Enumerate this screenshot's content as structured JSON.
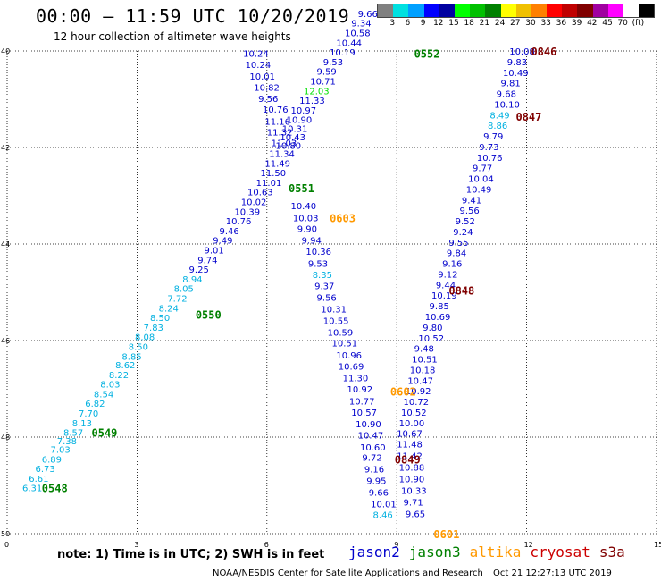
{
  "title": "00:00 – 11:59 UTC 10/20/2019",
  "subtitle": "12 hour collection of altimeter wave heights",
  "colorbar": {
    "colors": [
      "#808080",
      "#00e0e0",
      "#00a0ff",
      "#0000ff",
      "#0000a0",
      "#00ff00",
      "#00c000",
      "#008000",
      "#ffff00",
      "#f0c000",
      "#ff8000",
      "#ff0000",
      "#c00000",
      "#800000",
      "#a000a0",
      "#ff00ff",
      "#ffffff",
      "#000000"
    ],
    "labels": [
      "3",
      "6",
      "9",
      "12",
      "15",
      "18",
      "21",
      "24",
      "27",
      "30",
      "33",
      "36",
      "39",
      "42",
      "45",
      "70",
      "(ft)"
    ]
  },
  "axes": {
    "x_ticks": [
      "0",
      "3",
      "6",
      "9",
      "12",
      "15"
    ],
    "y_ticks": [
      "40",
      "42",
      "44",
      "46",
      "48",
      "50"
    ]
  },
  "note": "note: 1) Time is in UTC; 2) SWH is in feet",
  "legend": [
    {
      "name": "jason2",
      "color": "#0000cc"
    },
    {
      "name": "jason3",
      "color": "#008000"
    },
    {
      "name": "altika",
      "color": "#ff9900"
    },
    {
      "name": "cryosat",
      "color": "#cc0000"
    },
    {
      "name": "s3a",
      "color": "#800000"
    }
  ],
  "credit": "NOAA/NESDIS Center for Satellite Applications and Research",
  "timestamp": "Oct 21 12:27:13 UTC 2019",
  "pass_labels": [
    {
      "text": "0552",
      "color": "#008000",
      "x": 9.4,
      "y": 40.05
    },
    {
      "text": "0846",
      "color": "#800000",
      "x": 12.1,
      "y": 40.0
    },
    {
      "text": "0847",
      "color": "#800000",
      "x": 11.75,
      "y": 41.35
    },
    {
      "text": "0551",
      "color": "#008000",
      "x": 6.5,
      "y": 42.83
    },
    {
      "text": "0603",
      "color": "#ff9900",
      "x": 7.45,
      "y": 43.45
    },
    {
      "text": "0550",
      "color": "#008000",
      "x": 4.35,
      "y": 45.45
    },
    {
      "text": "0848",
      "color": "#800000",
      "x": 10.2,
      "y": 44.95
    },
    {
      "text": "0602",
      "color": "#ff9900",
      "x": 8.85,
      "y": 47.05
    },
    {
      "text": "0549",
      "color": "#008000",
      "x": 1.95,
      "y": 47.9
    },
    {
      "text": "0849",
      "color": "#800000",
      "x": 8.95,
      "y": 48.45
    },
    {
      "text": "0548",
      "color": "#008000",
      "x": 0.8,
      "y": 49.05
    },
    {
      "text": "0601",
      "color": "#ff9900",
      "x": 9.85,
      "y": 50.0
    }
  ],
  "tracks": [
    {
      "name": "jason3-0548-0552",
      "values": [
        {
          "v": "6.31",
          "c": "#00b0e0",
          "x": 0.35,
          "y": 49.05
        },
        {
          "v": "6.61",
          "c": "#00b0e0",
          "x": 0.5,
          "y": 48.85
        },
        {
          "v": "6.73",
          "c": "#00b0e0",
          "x": 0.65,
          "y": 48.65
        },
        {
          "v": "6.89",
          "c": "#00b0e0",
          "x": 0.8,
          "y": 48.45
        },
        {
          "v": "7.03",
          "c": "#00b0e0",
          "x": 1.0,
          "y": 48.25
        },
        {
          "v": "7.38",
          "c": "#00b0e0",
          "x": 1.15,
          "y": 48.07
        },
        {
          "v": "8.57",
          "c": "#00b0e0",
          "x": 1.3,
          "y": 47.9
        },
        {
          "v": "8.13",
          "c": "#00b0e0",
          "x": 1.5,
          "y": 47.7
        },
        {
          "v": "7.70",
          "c": "#00b0e0",
          "x": 1.65,
          "y": 47.5
        },
        {
          "v": "6.82",
          "c": "#00b0e0",
          "x": 1.8,
          "y": 47.3
        },
        {
          "v": "8.54",
          "c": "#00b0e0",
          "x": 2.0,
          "y": 47.1
        },
        {
          "v": "8.03",
          "c": "#00b0e0",
          "x": 2.15,
          "y": 46.9
        },
        {
          "v": "8.22",
          "c": "#00b0e0",
          "x": 2.35,
          "y": 46.7
        },
        {
          "v": "8.62",
          "c": "#00b0e0",
          "x": 2.5,
          "y": 46.5
        },
        {
          "v": "8.85",
          "c": "#00b0e0",
          "x": 2.65,
          "y": 46.32
        },
        {
          "v": "8.50",
          "c": "#00b0e0",
          "x": 2.8,
          "y": 46.12
        },
        {
          "v": "8.08",
          "c": "#00b0e0",
          "x": 2.95,
          "y": 45.92
        },
        {
          "v": "7.83",
          "c": "#00b0e0",
          "x": 3.15,
          "y": 45.72
        },
        {
          "v": "8.50",
          "c": "#00b0e0",
          "x": 3.3,
          "y": 45.52
        },
        {
          "v": "8.24",
          "c": "#00b0e0",
          "x": 3.5,
          "y": 45.32
        },
        {
          "v": "7.72",
          "c": "#00b0e0",
          "x": 3.7,
          "y": 45.12
        },
        {
          "v": "8.05",
          "c": "#00b0e0",
          "x": 3.85,
          "y": 44.92
        },
        {
          "v": "8.94",
          "c": "#00b0e0",
          "x": 4.05,
          "y": 44.72
        },
        {
          "v": "9.25",
          "c": "#0000cc",
          "x": 4.2,
          "y": 44.52
        },
        {
          "v": "9.74",
          "c": "#0000cc",
          "x": 4.4,
          "y": 44.32
        },
        {
          "v": "9.01",
          "c": "#0000cc",
          "x": 4.55,
          "y": 44.12
        },
        {
          "v": "9.49",
          "c": "#0000cc",
          "x": 4.75,
          "y": 43.92
        },
        {
          "v": "9.46",
          "c": "#0000cc",
          "x": 4.9,
          "y": 43.72
        },
        {
          "v": "10.76",
          "c": "#0000cc",
          "x": 5.05,
          "y": 43.52
        },
        {
          "v": "10.39",
          "c": "#0000cc",
          "x": 5.25,
          "y": 43.32
        },
        {
          "v": "10.02",
          "c": "#0000cc",
          "x": 5.4,
          "y": 43.12
        },
        {
          "v": "10.63",
          "c": "#0000cc",
          "x": 5.55,
          "y": 42.92
        },
        {
          "v": "11.01",
          "c": "#0000cc",
          "x": 5.75,
          "y": 42.72
        },
        {
          "v": "11.50",
          "c": "#0000cc",
          "x": 5.85,
          "y": 42.52
        },
        {
          "v": "11.49",
          "c": "#0000cc",
          "x": 5.95,
          "y": 42.32
        },
        {
          "v": "11.34",
          "c": "#0000cc",
          "x": 6.05,
          "y": 42.12
        },
        {
          "v": "10.80",
          "c": "#0000cc",
          "x": 6.2,
          "y": 41.95
        },
        {
          "v": "10.43",
          "c": "#0000cc",
          "x": 6.3,
          "y": 41.78
        },
        {
          "v": "10.31",
          "c": "#0000cc",
          "x": 6.35,
          "y": 41.6
        },
        {
          "v": "10.90",
          "c": "#0000cc",
          "x": 6.45,
          "y": 41.42
        },
        {
          "v": "10.97",
          "c": "#0000cc",
          "x": 6.55,
          "y": 41.22
        },
        {
          "v": "11.33",
          "c": "#0000cc",
          "x": 6.75,
          "y": 41.02
        },
        {
          "v": "12.03",
          "c": "#00e000",
          "x": 6.85,
          "y": 40.82
        },
        {
          "v": "10.71",
          "c": "#0000cc",
          "x": 7.0,
          "y": 40.62
        },
        {
          "v": "9.59",
          "c": "#0000cc",
          "x": 7.15,
          "y": 40.42
        },
        {
          "v": "9.53",
          "c": "#0000cc",
          "x": 7.3,
          "y": 40.22
        },
        {
          "v": "10.19",
          "c": "#0000cc",
          "x": 7.45,
          "y": 40.02
        },
        {
          "v": "10.44",
          "c": "#0000cc",
          "x": 7.6,
          "y": 39.82
        },
        {
          "v": "10.58",
          "c": "#0000cc",
          "x": 7.8,
          "y": 39.62
        },
        {
          "v": "9.34",
          "c": "#0000cc",
          "x": 7.95,
          "y": 39.42
        },
        {
          "v": "9.66",
          "c": "#0000cc",
          "x": 8.1,
          "y": 39.22
        }
      ]
    },
    {
      "name": "jason2-0601-0603",
      "values": [
        {
          "v": "10.24",
          "c": "#0000cc",
          "x": 5.45,
          "y": 40.05
        },
        {
          "v": "10.24",
          "c": "#0000cc",
          "x": 5.5,
          "y": 40.28
        },
        {
          "v": "10.01",
          "c": "#0000cc",
          "x": 5.6,
          "y": 40.52
        },
        {
          "v": "10.82",
          "c": "#0000cc",
          "x": 5.7,
          "y": 40.75
        },
        {
          "v": "9.56",
          "c": "#0000cc",
          "x": 5.8,
          "y": 40.98
        },
        {
          "v": "10.76",
          "c": "#0000cc",
          "x": 5.9,
          "y": 41.2
        },
        {
          "v": "11.16",
          "c": "#0000cc",
          "x": 5.95,
          "y": 41.45
        },
        {
          "v": "11.32",
          "c": "#0000cc",
          "x": 6.0,
          "y": 41.68
        },
        {
          "v": "11.03",
          "c": "#0000cc",
          "x": 6.1,
          "y": 41.9
        },
        {
          "v": "10.40",
          "c": "#0000cc",
          "x": 6.55,
          "y": 43.2
        },
        {
          "v": "10.03",
          "c": "#0000cc",
          "x": 6.6,
          "y": 43.45
        },
        {
          "v": "9.90",
          "c": "#0000cc",
          "x": 6.7,
          "y": 43.68
        },
        {
          "v": "9.94",
          "c": "#0000cc",
          "x": 6.8,
          "y": 43.92
        },
        {
          "v": "10.36",
          "c": "#0000cc",
          "x": 6.9,
          "y": 44.15
        },
        {
          "v": "9.53",
          "c": "#0000cc",
          "x": 6.95,
          "y": 44.4
        },
        {
          "v": "8.35",
          "c": "#00b0e0",
          "x": 7.05,
          "y": 44.63
        },
        {
          "v": "9.37",
          "c": "#0000cc",
          "x": 7.1,
          "y": 44.86
        },
        {
          "v": "9.56",
          "c": "#0000cc",
          "x": 7.15,
          "y": 45.1
        },
        {
          "v": "10.31",
          "c": "#0000cc",
          "x": 7.25,
          "y": 45.34
        },
        {
          "v": "10.55",
          "c": "#0000cc",
          "x": 7.3,
          "y": 45.58
        },
        {
          "v": "10.59",
          "c": "#0000cc",
          "x": 7.4,
          "y": 45.82
        },
        {
          "v": "10.51",
          "c": "#0000cc",
          "x": 7.5,
          "y": 46.05
        },
        {
          "v": "10.96",
          "c": "#0000cc",
          "x": 7.6,
          "y": 46.3
        },
        {
          "v": "10.69",
          "c": "#0000cc",
          "x": 7.65,
          "y": 46.53
        },
        {
          "v": "11.30",
          "c": "#0000cc",
          "x": 7.75,
          "y": 46.77
        },
        {
          "v": "10.92",
          "c": "#0000cc",
          "x": 7.85,
          "y": 47.0
        },
        {
          "v": "10.77",
          "c": "#0000cc",
          "x": 7.9,
          "y": 47.25
        },
        {
          "v": "10.57",
          "c": "#0000cc",
          "x": 7.95,
          "y": 47.48
        },
        {
          "v": "10.90",
          "c": "#0000cc",
          "x": 8.05,
          "y": 47.72
        },
        {
          "v": "10.47",
          "c": "#0000cc",
          "x": 8.1,
          "y": 47.95
        },
        {
          "v": "10.60",
          "c": "#0000cc",
          "x": 8.15,
          "y": 48.2
        },
        {
          "v": "9.72",
          "c": "#0000cc",
          "x": 8.2,
          "y": 48.42
        },
        {
          "v": "9.16",
          "c": "#0000cc",
          "x": 8.25,
          "y": 48.66
        },
        {
          "v": "9.95",
          "c": "#0000cc",
          "x": 8.3,
          "y": 48.9
        },
        {
          "v": "9.66",
          "c": "#0000cc",
          "x": 8.35,
          "y": 49.14
        },
        {
          "v": "10.01",
          "c": "#0000cc",
          "x": 8.4,
          "y": 49.38
        },
        {
          "v": "8.46",
          "c": "#00b0e0",
          "x": 8.45,
          "y": 49.6
        }
      ]
    },
    {
      "name": "cryosat-0846-0849",
      "values": [
        {
          "v": "10.08",
          "c": "#0000cc",
          "x": 11.6,
          "y": 40.0
        },
        {
          "v": "9.83",
          "c": "#0000cc",
          "x": 11.55,
          "y": 40.22
        },
        {
          "v": "10.49",
          "c": "#0000cc",
          "x": 11.45,
          "y": 40.44
        },
        {
          "v": "9.81",
          "c": "#0000cc",
          "x": 11.4,
          "y": 40.66
        },
        {
          "v": "9.68",
          "c": "#0000cc",
          "x": 11.3,
          "y": 40.88
        },
        {
          "v": "10.10",
          "c": "#0000cc",
          "x": 11.25,
          "y": 41.1
        },
        {
          "v": "8.49",
          "c": "#00b0e0",
          "x": 11.15,
          "y": 41.32
        },
        {
          "v": "8.86",
          "c": "#00b0e0",
          "x": 11.1,
          "y": 41.54
        },
        {
          "v": "9.79",
          "c": "#0000cc",
          "x": 11.0,
          "y": 41.76
        },
        {
          "v": "9.73",
          "c": "#0000cc",
          "x": 10.9,
          "y": 41.98
        },
        {
          "v": "10.76",
          "c": "#0000cc",
          "x": 10.85,
          "y": 42.2
        },
        {
          "v": "9.77",
          "c": "#0000cc",
          "x": 10.75,
          "y": 42.42
        },
        {
          "v": "10.04",
          "c": "#0000cc",
          "x": 10.65,
          "y": 42.64
        },
        {
          "v": "10.49",
          "c": "#0000cc",
          "x": 10.6,
          "y": 42.86
        },
        {
          "v": "9.41",
          "c": "#0000cc",
          "x": 10.5,
          "y": 43.08
        },
        {
          "v": "9.56",
          "c": "#0000cc",
          "x": 10.45,
          "y": 43.3
        },
        {
          "v": "9.52",
          "c": "#0000cc",
          "x": 10.35,
          "y": 43.52
        },
        {
          "v": "9.24",
          "c": "#0000cc",
          "x": 10.3,
          "y": 43.74
        },
        {
          "v": "9.55",
          "c": "#0000cc",
          "x": 10.2,
          "y": 43.96
        },
        {
          "v": "9.84",
          "c": "#0000cc",
          "x": 10.15,
          "y": 44.18
        },
        {
          "v": "9.16",
          "c": "#0000cc",
          "x": 10.05,
          "y": 44.4
        },
        {
          "v": "9.12",
          "c": "#0000cc",
          "x": 9.95,
          "y": 44.62
        },
        {
          "v": "9.44",
          "c": "#0000cc",
          "x": 9.9,
          "y": 44.84
        },
        {
          "v": "10.19",
          "c": "#0000cc",
          "x": 9.8,
          "y": 45.06
        },
        {
          "v": "9.85",
          "c": "#0000cc",
          "x": 9.75,
          "y": 45.28
        },
        {
          "v": "10.69",
          "c": "#0000cc",
          "x": 9.65,
          "y": 45.5
        },
        {
          "v": "9.80",
          "c": "#0000cc",
          "x": 9.6,
          "y": 45.72
        },
        {
          "v": "10.52",
          "c": "#0000cc",
          "x": 9.5,
          "y": 45.94
        },
        {
          "v": "9.48",
          "c": "#0000cc",
          "x": 9.4,
          "y": 46.16
        },
        {
          "v": "10.51",
          "c": "#0000cc",
          "x": 9.35,
          "y": 46.38
        },
        {
          "v": "10.18",
          "c": "#0000cc",
          "x": 9.3,
          "y": 46.6
        },
        {
          "v": "10.47",
          "c": "#0000cc",
          "x": 9.25,
          "y": 46.82
        },
        {
          "v": "10.92",
          "c": "#0000cc",
          "x": 9.2,
          "y": 47.04
        },
        {
          "v": "10.72",
          "c": "#0000cc",
          "x": 9.15,
          "y": 47.26
        },
        {
          "v": "10.52",
          "c": "#0000cc",
          "x": 9.1,
          "y": 47.48
        },
        {
          "v": "10.00",
          "c": "#0000cc",
          "x": 9.05,
          "y": 47.7
        },
        {
          "v": "10.67",
          "c": "#0000cc",
          "x": 9.0,
          "y": 47.92
        },
        {
          "v": "11.48",
          "c": "#0000cc",
          "x": 9.0,
          "y": 48.14
        },
        {
          "v": "11.42",
          "c": "#0000cc",
          "x": 9.0,
          "y": 48.38
        },
        {
          "v": "10.88",
          "c": "#0000cc",
          "x": 9.05,
          "y": 48.62
        },
        {
          "v": "10.90",
          "c": "#0000cc",
          "x": 9.05,
          "y": 48.86
        },
        {
          "v": "10.33",
          "c": "#0000cc",
          "x": 9.1,
          "y": 49.1
        },
        {
          "v": "9.71",
          "c": "#0000cc",
          "x": 9.15,
          "y": 49.34
        },
        {
          "v": "9.65",
          "c": "#0000cc",
          "x": 9.2,
          "y": 49.58
        }
      ]
    }
  ]
}
